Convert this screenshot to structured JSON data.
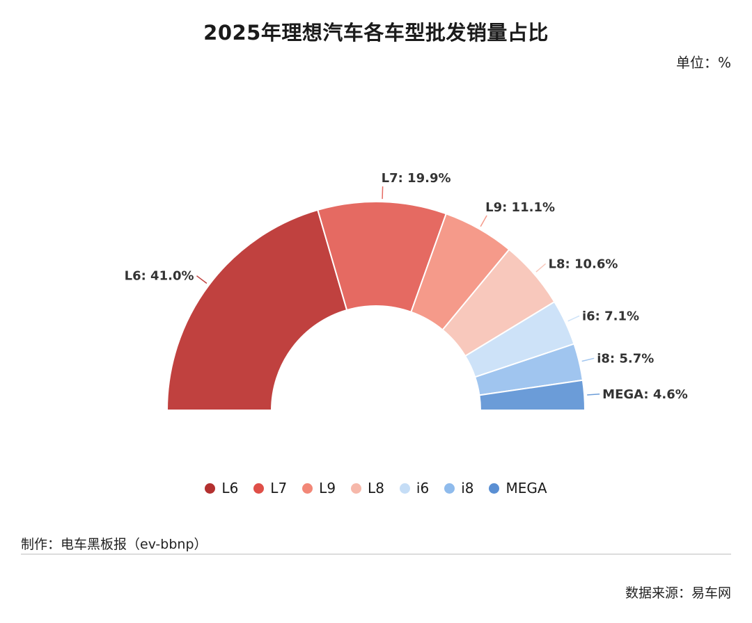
{
  "title": "2025年理想汽车各车型批发销量占比",
  "unit_label": "单位：%",
  "maker_text": "制作：电车黑板报（ev-bbnp）",
  "source_text": "数据来源：易车网",
  "chart_data": {
    "type": "pie",
    "variant": "half-donut",
    "title": "2025年理想汽车各车型批发销量占比",
    "legend_position": "bottom",
    "slices": [
      {
        "name": "L6",
        "value": 41.0,
        "label": "L6: 41.0%",
        "color": "#c0413f",
        "legend_color": "#b3302f"
      },
      {
        "name": "L7",
        "value": 19.9,
        "label": "L7: 19.9%",
        "color": "#e56a62",
        "legend_color": "#df4f48"
      },
      {
        "name": "L9",
        "value": 11.1,
        "label": "L9: 11.1%",
        "color": "#f59a8a",
        "legend_color": "#f28777"
      },
      {
        "name": "L8",
        "value": 10.6,
        "label": "L8: 10.6%",
        "color": "#f8c8bc",
        "legend_color": "#f6b8aa"
      },
      {
        "name": "i6",
        "value": 7.1,
        "label": "i6: 7.1%",
        "color": "#cde2f8",
        "legend_color": "#c5ddf6"
      },
      {
        "name": "i8",
        "value": 5.7,
        "label": "i8: 5.7%",
        "color": "#a0c5ef",
        "legend_color": "#8fbbec"
      },
      {
        "name": "MEGA",
        "value": 4.6,
        "label": "MEGA: 4.6%",
        "color": "#6b9cd8",
        "legend_color": "#5a8fd3"
      }
    ]
  }
}
